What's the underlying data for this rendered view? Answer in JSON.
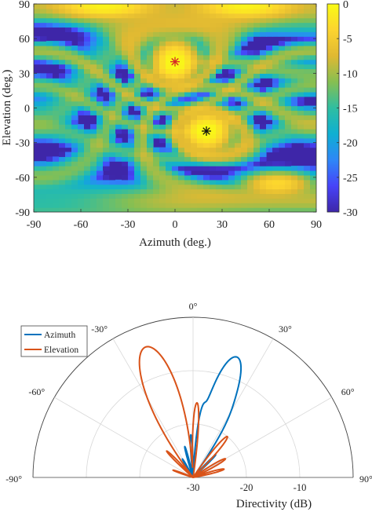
{
  "chart_data": [
    {
      "type": "heatmap",
      "title": "",
      "xlabel": "Azimuth (deg.)",
      "ylabel": "Elevation (deg.)",
      "xlim": [
        -90,
        90
      ],
      "ylim": [
        -90,
        90
      ],
      "x_ticks": [
        "-90",
        "-60",
        "-30",
        "0",
        "30",
        "60",
        "90"
      ],
      "y_ticks": [
        "90",
        "60",
        "30",
        "0",
        "-30",
        "-60",
        "-90"
      ],
      "colorbar": {
        "range": [
          -30,
          0
        ],
        "ticks": [
          "0",
          "-5",
          "-10",
          "-15",
          "-20",
          "-25",
          "-30"
        ]
      },
      "colormap": [
        "#3e26a8",
        "#4743f8",
        "#2e87f7",
        "#0fafd2",
        "#2fbea1",
        "#86bf52",
        "#e0b932",
        "#fcd42f",
        "#f9fb15"
      ],
      "peaks": [
        {
          "azimuth": 0,
          "elevation": 40,
          "value": -6
        },
        {
          "azimuth": 20,
          "elevation": -20,
          "value": -6
        }
      ],
      "markers": [
        {
          "azimuth": 0,
          "elevation": 40,
          "color": "#d62828",
          "symbol": "asterisk"
        },
        {
          "azimuth": 20,
          "elevation": -20,
          "color": "#111111",
          "symbol": "asterisk"
        }
      ]
    },
    {
      "type": "polar",
      "title": "",
      "xlabel": "Directivity (dB)",
      "angle_ticks": [
        "-90°",
        "-60°",
        "-30°",
        "0°",
        "30°",
        "60°",
        "90°"
      ],
      "radial_ticks": [
        "-30",
        "-20",
        "-10"
      ],
      "radial_range": [
        -30,
        0
      ],
      "legend": {
        "position": "top-left",
        "entries": [
          "Azimuth",
          "Elevation"
        ]
      },
      "series": [
        {
          "name": "Azimuth",
          "color": "#0072bd",
          "lobes": [
            {
              "angle": 20,
              "peak_db": -6,
              "width": 6
            },
            {
              "angle": 8,
              "peak_db": -17,
              "width": 3
            },
            {
              "angle": 30,
              "peak_db": -20,
              "width": 3
            },
            {
              "angle": -3,
              "peak_db": -22,
              "width": 2.5
            },
            {
              "angle": -15,
              "peak_db": -24,
              "width": 2.5
            },
            {
              "angle": 45,
              "peak_db": -24,
              "width": 2.5
            },
            {
              "angle": -30,
              "peak_db": -26,
              "width": 3
            }
          ]
        },
        {
          "name": "Elevation",
          "color": "#d95319",
          "lobes": [
            {
              "angle": -20,
              "peak_db": -4,
              "width": 7
            },
            {
              "angle": 3,
              "peak_db": -16,
              "width": 3
            },
            {
              "angle": 40,
              "peak_db": -20,
              "width": 4
            },
            {
              "angle": -45,
              "peak_db": -23,
              "width": 3
            },
            {
              "angle": 60,
              "peak_db": -23,
              "width": 4
            },
            {
              "angle": 75,
              "peak_db": -24,
              "width": 4
            },
            {
              "angle": -70,
              "peak_db": -26,
              "width": 3
            }
          ]
        }
      ]
    }
  ]
}
